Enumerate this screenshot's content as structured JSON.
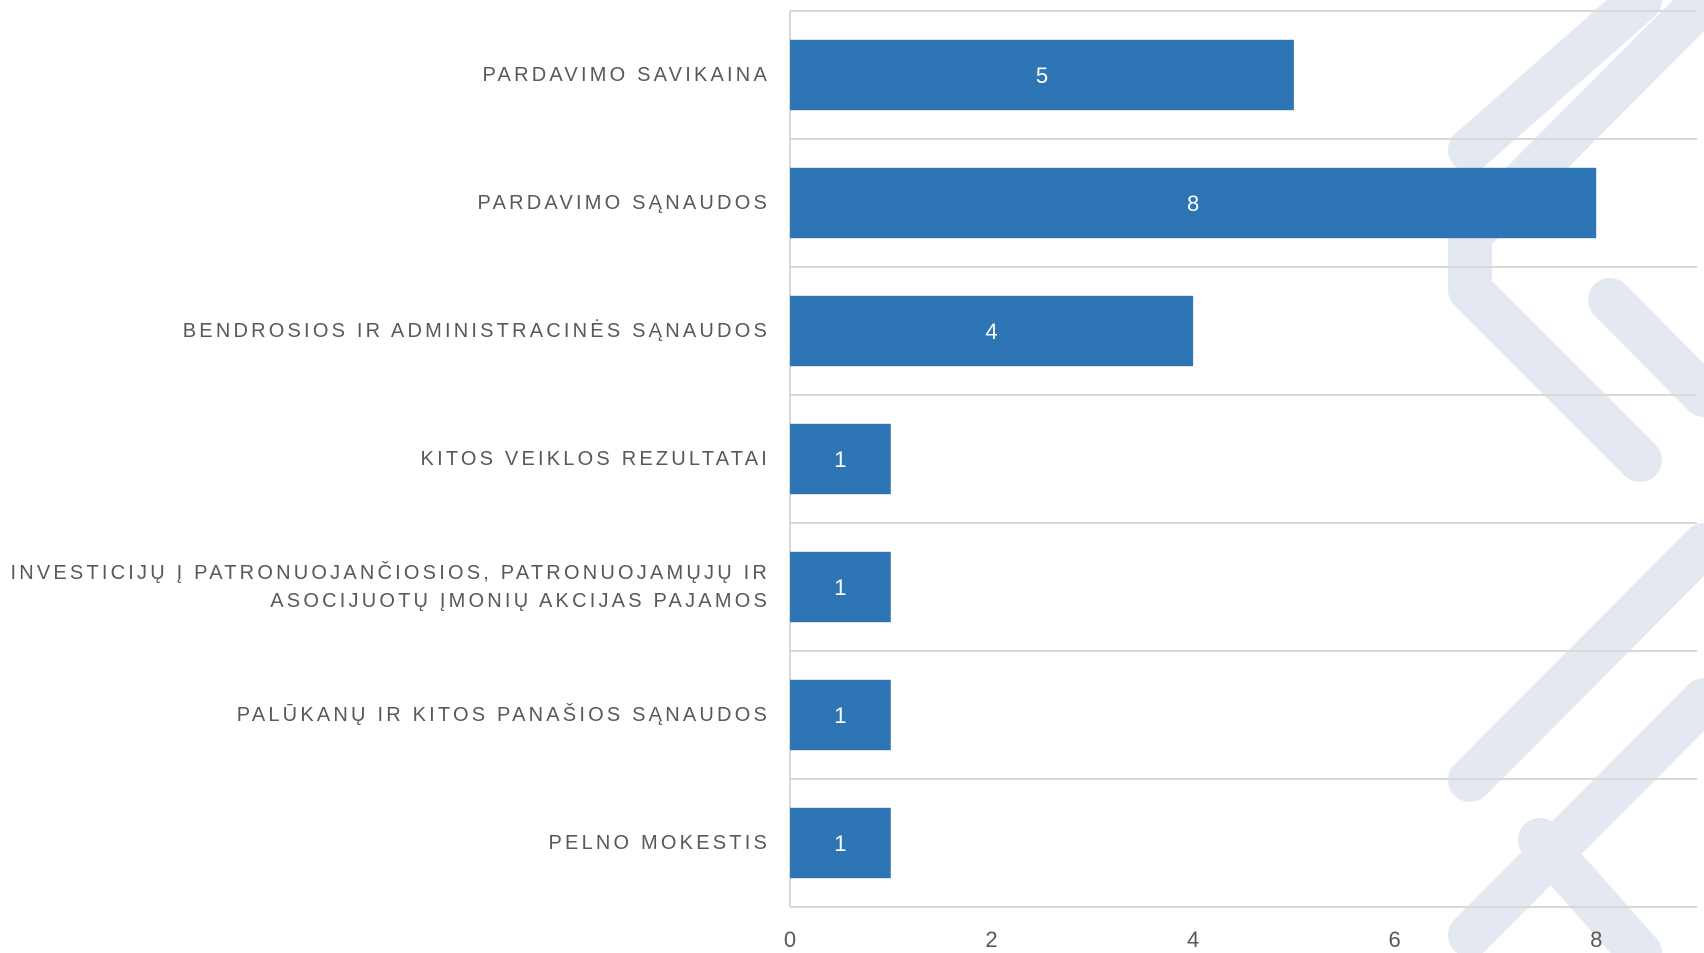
{
  "chart_data": {
    "type": "bar",
    "orientation": "horizontal",
    "categories": [
      "PARDAVIMO SAVIKAINA",
      "PARDAVIMO SĄNAUDOS",
      "BENDROSIOS IR ADMINISTRACINĖS SĄNAUDOS",
      "KITOS VEIKLOS REZULTATAI",
      "INVESTICIJŲ Į PATRONUOJANČIOSIOS, PATRONUOJAMŲJŲ IR ASOCIJUOTŲ ĮMONIŲ AKCIJAS PAJAMOS",
      "PALŪKANŲ IR KITOS PANAŠIOS SĄNAUDOS",
      "PELNO MOKESTIS"
    ],
    "values": [
      5,
      8,
      4,
      1,
      1,
      1,
      1
    ],
    "color": "#2e75b6",
    "xlim": [
      0,
      9
    ],
    "xticks": [
      0,
      2,
      4,
      6,
      8
    ]
  }
}
